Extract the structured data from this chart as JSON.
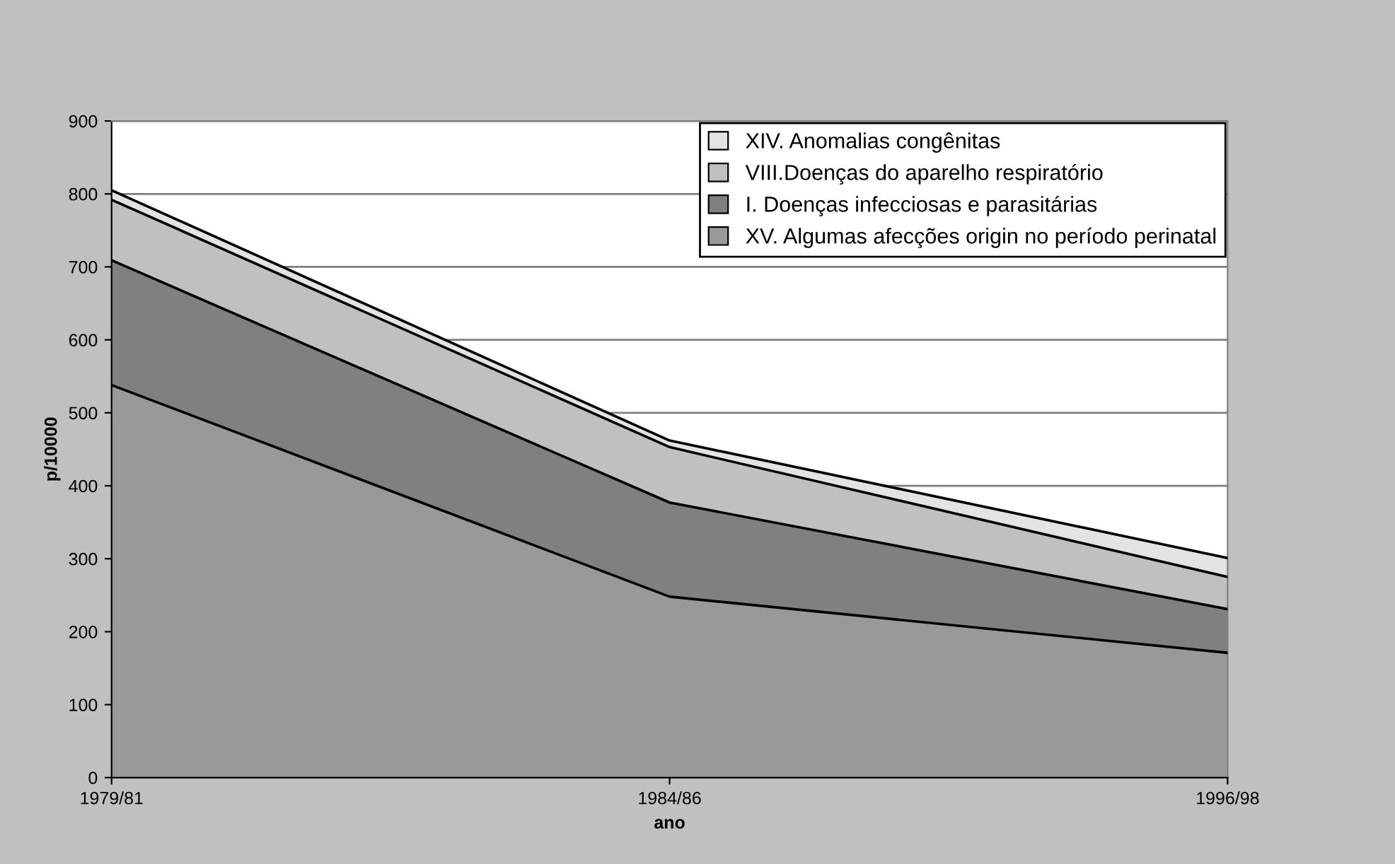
{
  "chart_data": {
    "type": "area",
    "stacked": true,
    "xlabel": "ano",
    "ylabel": "p/10000",
    "categories": [
      "1979/81",
      "1984/86",
      "1996/98"
    ],
    "series": [
      {
        "name": "XV. Algumas afecções origin no período perinatal",
        "color": "#999999",
        "values": [
          538,
          248,
          171
        ]
      },
      {
        "name": "I. Doenças infecciosas e parasitárias",
        "color": "#808080",
        "values": [
          171,
          129,
          60
        ]
      },
      {
        "name": "VIII.Doenças do aparelho respiratório",
        "color": "#c0c0c0",
        "values": [
          83,
          76,
          44
        ]
      },
      {
        "name": "XIV. Anomalias congênitas",
        "color": "#e3e3e3",
        "values": [
          13,
          9,
          26
        ]
      }
    ],
    "ylim": [
      0,
      900
    ],
    "yticks": [
      0,
      100,
      200,
      300,
      400,
      500,
      600,
      700,
      800,
      900
    ],
    "grid": "y",
    "legend": "top right"
  }
}
